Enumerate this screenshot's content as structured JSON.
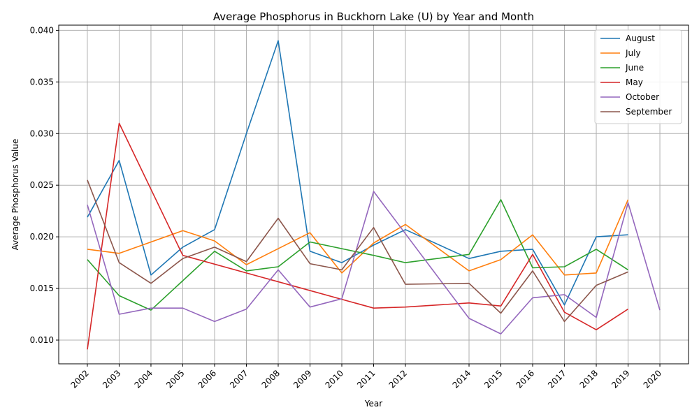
{
  "chart_data": {
    "type": "line",
    "title": "Average Phosphorus in Buckhorn Lake (U) by Year and Month",
    "xlabel": "Year",
    "ylabel": "Average Phosphorus Value",
    "xlim": [
      2001.1,
      2020.9
    ],
    "ylim": [
      0.0077,
      0.0405
    ],
    "yticks": [
      "0.010",
      "0.015",
      "0.020",
      "0.025",
      "0.030",
      "0.035",
      "0.040"
    ],
    "xticks": [
      "2002",
      "2003",
      "2004",
      "2005",
      "2006",
      "2007",
      "2008",
      "2009",
      "2010",
      "2011",
      "2012",
      "2014",
      "2015",
      "2016",
      "2017",
      "2018",
      "2019",
      "2020"
    ],
    "grid": true,
    "legend_position": "top-right",
    "series": [
      {
        "name": "August",
        "color": "#1f77b4",
        "x": [
          2002,
          2003,
          2004,
          2005,
          2006,
          2007,
          2008,
          2009,
          2010,
          2011,
          2012,
          2014,
          2015,
          2016,
          2017,
          2018,
          2019
        ],
        "values": [
          0.0219,
          0.0274,
          0.0163,
          0.019,
          0.0207,
          0.03,
          0.039,
          0.0186,
          0.0175,
          0.0192,
          0.0207,
          0.0179,
          0.0186,
          0.0188,
          0.0134,
          0.02,
          0.0202
        ]
      },
      {
        "name": "July",
        "color": "#ff7f0e",
        "x": [
          2002,
          2003,
          2005,
          2006,
          2007,
          2009,
          2010,
          2011,
          2012,
          2014,
          2015,
          2016,
          2017,
          2018,
          2019
        ],
        "values": [
          0.0188,
          0.0184,
          0.0206,
          0.0196,
          0.0173,
          0.0204,
          0.0165,
          0.0194,
          0.0212,
          0.0167,
          0.0178,
          0.0202,
          0.0163,
          0.0165,
          0.0236
        ]
      },
      {
        "name": "June",
        "color": "#2ca02c",
        "x": [
          2002,
          2003,
          2004,
          2006,
          2007,
          2008,
          2009,
          2011,
          2012,
          2014,
          2015,
          2016,
          2017,
          2018,
          2019
        ],
        "values": [
          0.0178,
          0.0143,
          0.0129,
          0.0186,
          0.0167,
          0.0171,
          0.0195,
          0.0182,
          0.0175,
          0.0183,
          0.0236,
          0.017,
          0.0171,
          0.0188,
          0.0168
        ]
      },
      {
        "name": "May",
        "color": "#d62728",
        "x": [
          2002,
          2003,
          2005,
          2011,
          2012,
          2014,
          2015,
          2016,
          2017,
          2018,
          2019
        ],
        "values": [
          0.0091,
          0.031,
          0.0182,
          0.0131,
          0.0132,
          0.0136,
          0.0133,
          0.0183,
          0.0127,
          0.011,
          0.013
        ]
      },
      {
        "name": "October",
        "color": "#9467bd",
        "x": [
          2002,
          2003,
          2004,
          2005,
          2006,
          2007,
          2008,
          2009,
          2010,
          2011,
          2012,
          2014,
          2015,
          2016,
          2017,
          2018,
          2019,
          2020
        ],
        "values": [
          0.0231,
          0.0125,
          0.0131,
          0.0131,
          0.0118,
          0.013,
          0.0168,
          0.0132,
          0.014,
          0.0244,
          0.0203,
          0.0121,
          0.0106,
          0.0141,
          0.0144,
          0.0122,
          0.0233,
          0.0129
        ]
      },
      {
        "name": "September",
        "color": "#8c564b",
        "x": [
          2002,
          2003,
          2004,
          2005,
          2006,
          2007,
          2008,
          2009,
          2010,
          2011,
          2012,
          2014,
          2015,
          2016,
          2017,
          2018,
          2019
        ],
        "values": [
          0.0255,
          0.0175,
          0.0155,
          0.0179,
          0.019,
          0.0176,
          0.0218,
          0.0174,
          0.0168,
          0.0209,
          0.0154,
          0.0155,
          0.0126,
          0.0167,
          0.0118,
          0.0153,
          0.0166
        ]
      }
    ]
  }
}
